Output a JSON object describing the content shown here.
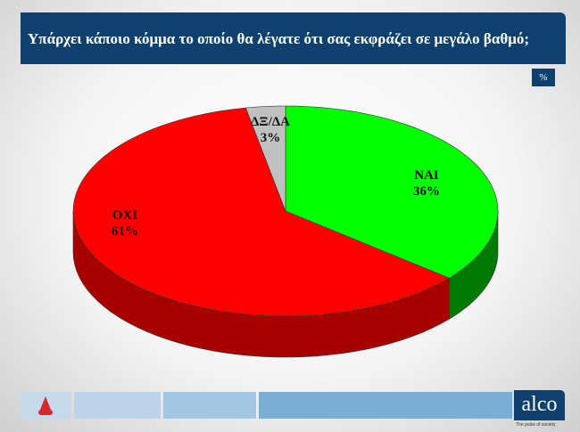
{
  "header": {
    "title": "Υπάρχει κάποιο κόμμα το οποίο  θα λέγατε ότι σας εκφράζει σε μεγάλο βαθμό;",
    "unit_badge": "%"
  },
  "chart_data": {
    "type": "pie",
    "style": "3d",
    "categories": [
      "ΝΑΙ",
      "ΟΧΙ",
      "ΔΞ/ΔΑ"
    ],
    "values": [
      36,
      61,
      3
    ],
    "labels": [
      "36%",
      "61%",
      "3%"
    ],
    "colors": [
      "#00ff00",
      "#ff0000",
      "#c0c0c0"
    ],
    "side_colors": [
      "#007a00",
      "#a80000",
      "#8a8a8a"
    ]
  },
  "footer": {
    "brand": "alco",
    "tagline": "The pulse of society",
    "channel_logo": "Alpha"
  }
}
